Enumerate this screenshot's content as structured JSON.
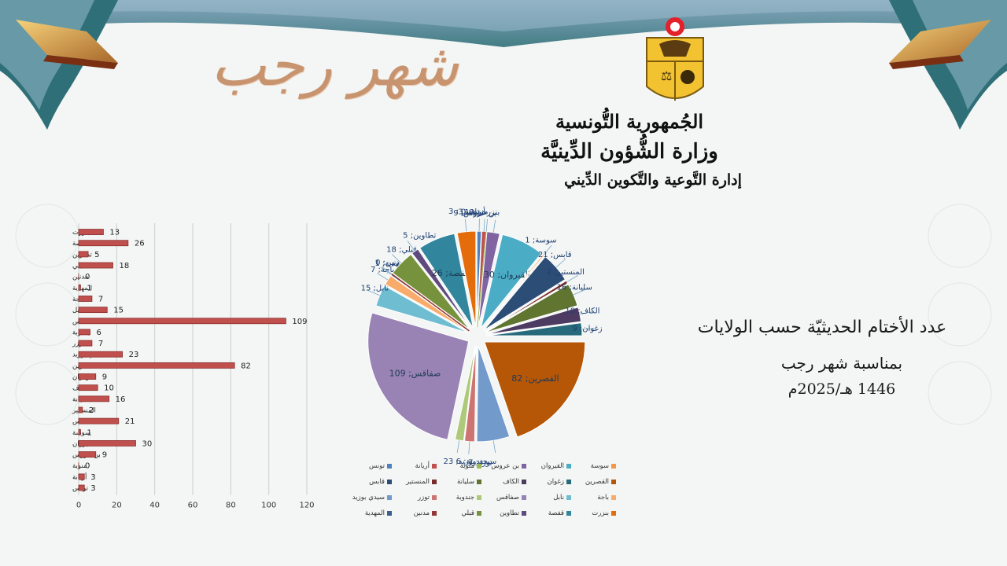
{
  "header": {
    "calligraphy": "شهر رجب",
    "republic": "الجُمهورية التُّونسية",
    "ministry": "وزارة الشُّؤون الدِّينيَّة",
    "department": "إدارة التَّوعية والتَّكوين الدِّيني"
  },
  "caption": {
    "title": "عدد الأختام الحديثيّة حسب الولايات",
    "subtitle": "بمناسبة شهر رجب",
    "date": "1446 هـ/2025م"
  },
  "colors": {
    "bar_fill": "#c0504d",
    "frame_teal": "#2f6f78",
    "tile_blue": "#6a8fb3"
  },
  "chart_data": [
    {
      "type": "bar",
      "orientation": "horizontal",
      "categories": [
        "بنزرت",
        "قفصة",
        "تطاوين",
        "قبلي",
        "مدنين",
        "المهدية",
        "باجة",
        "نابل",
        "صفاقس",
        "جندوبة",
        "توزر",
        "سيدي بوزيد",
        "القصرين",
        "زغوان",
        "الكاف",
        "سليانة",
        "المنستير",
        "قابس",
        "سوسة",
        "القيروان",
        "بن عروس",
        "منوبة",
        "أريانة",
        "تونس"
      ],
      "values": [
        13,
        26,
        5,
        18,
        0,
        1,
        7,
        15,
        109,
        6,
        7,
        23,
        82,
        9,
        10,
        16,
        2,
        21,
        1,
        30,
        9,
        0,
        3,
        3
      ],
      "xlim": [
        0,
        120
      ],
      "xticks": [
        0,
        20,
        40,
        60,
        80,
        100,
        120
      ],
      "grid": true
    },
    {
      "type": "pie",
      "exploded": true,
      "categories": [
        "تونس",
        "أريانة",
        "منوبة",
        "بن عروس",
        "القيروان",
        "سوسة",
        "قابس",
        "المنستير",
        "سليانة",
        "الكاف",
        "زغوان",
        "القصرين",
        "سيدي بوزيد",
        "توزر",
        "جندوبة",
        "صفاقس",
        "نابل",
        "باجة",
        "المهدية",
        "مدنين",
        "قبلي",
        "تطاوين",
        "قفصة",
        "بنزرت"
      ],
      "values": [
        3,
        3,
        0,
        9,
        30,
        1,
        21,
        2,
        16,
        10,
        9,
        82,
        23,
        7,
        6,
        109,
        15,
        7,
        1,
        0,
        18,
        5,
        26,
        13
      ],
      "labels": [
        "تونس ; 3",
        "أريانة; 3",
        "منوبة; 0",
        "بن عروس; 9",
        "القيروان; 30",
        "سوسة; 1",
        "قابس; 21",
        "المنستير; 2",
        "سليانة; 16",
        "الكاف; 10",
        "زغوان; 9",
        "القصرين; 82",
        "سيدي بوزيد; 23",
        "توزر; 7",
        "جندوبة; 6",
        "صفاقس; 109",
        "نابل; 15",
        "باجة; 7",
        "المهدية; 1",
        "مدنين; 0",
        "قبلي; 18",
        "تطاوين; 5",
        "قفصة; 26",
        "بنزرت; 13"
      ],
      "colors": [
        "#4f81bd",
        "#c0504d",
        "#9bbb59",
        "#8064a2",
        "#4bacc6",
        "#f79646",
        "#2c4d75",
        "#772c2a",
        "#5f7530",
        "#4d3b62",
        "#276a7c",
        "#b65708",
        "#729aca",
        "#cd7371",
        "#afc97a",
        "#9983b5",
        "#6fbdd1",
        "#f9ab6b",
        "#3a5f8f",
        "#953735",
        "#76923c",
        "#5f4a7e",
        "#31859c",
        "#e46c0a"
      ],
      "legend_position": "bottom"
    }
  ]
}
